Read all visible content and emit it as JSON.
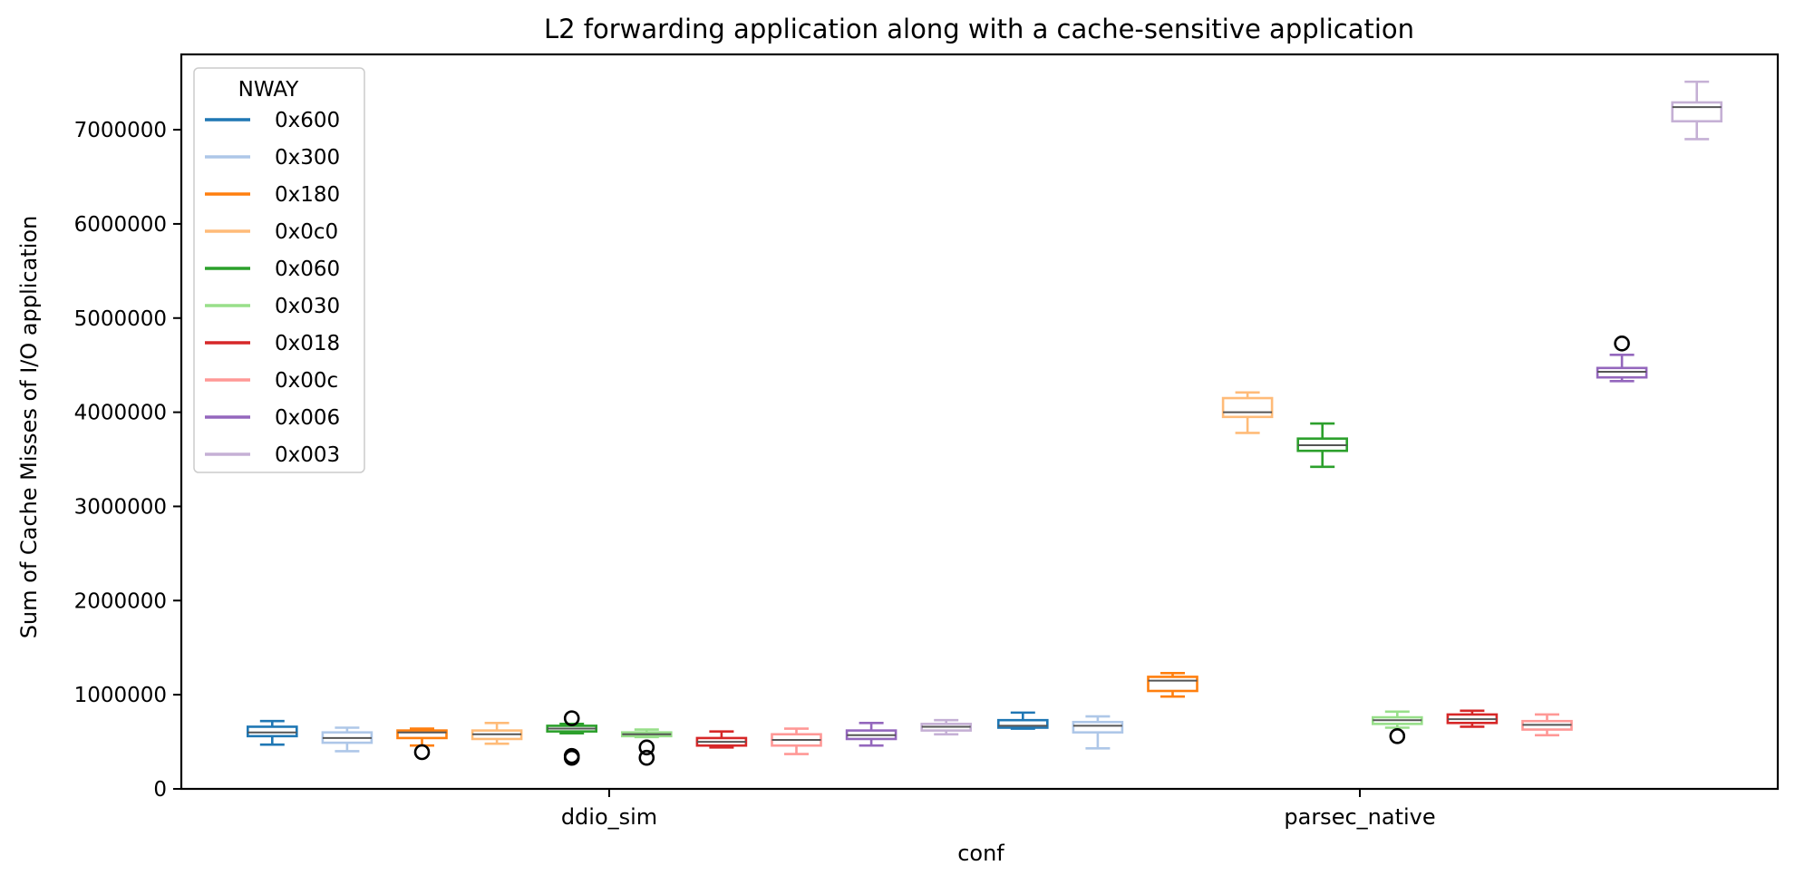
{
  "chart_data": {
    "type": "box",
    "title": "L2 forwarding application along with a cache-sensitive application",
    "xlabel": "conf",
    "ylabel": "Sum of Cache Misses of I/O application",
    "categories": [
      "ddio_sim",
      "parsec_native"
    ],
    "ylim": [
      0,
      7800000
    ],
    "yticks": [
      0,
      1000000,
      2000000,
      3000000,
      4000000,
      5000000,
      6000000,
      7000000
    ],
    "ytick_labels": [
      "0",
      "1000000",
      "2000000",
      "3000000",
      "4000000",
      "5000000",
      "6000000",
      "7000000"
    ],
    "grid": false,
    "legend": {
      "title": "NWAY",
      "position": "top-left"
    },
    "series": [
      {
        "name": "0x600",
        "color": "#1f77b4",
        "boxes": [
          {
            "category": "ddio_sim",
            "whislo": 470000,
            "q1": 560000,
            "med": 600000,
            "q3": 660000,
            "whishi": 720000,
            "fliers": []
          },
          {
            "category": "parsec_native",
            "whislo": 640000,
            "q1": 650000,
            "med": 670000,
            "q3": 730000,
            "whishi": 810000,
            "fliers": []
          }
        ]
      },
      {
        "name": "0x300",
        "color": "#aec7e8",
        "boxes": [
          {
            "category": "ddio_sim",
            "whislo": 400000,
            "q1": 490000,
            "med": 540000,
            "q3": 600000,
            "whishi": 650000,
            "fliers": []
          },
          {
            "category": "parsec_native",
            "whislo": 430000,
            "q1": 600000,
            "med": 670000,
            "q3": 710000,
            "whishi": 770000,
            "fliers": []
          }
        ]
      },
      {
        "name": "0x180",
        "color": "#ff7f0e",
        "boxes": [
          {
            "category": "ddio_sim",
            "whislo": 460000,
            "q1": 540000,
            "med": 600000,
            "q3": 620000,
            "whishi": 640000,
            "fliers": [
              390000
            ]
          },
          {
            "category": "parsec_native",
            "whislo": 980000,
            "q1": 1040000,
            "med": 1150000,
            "q3": 1190000,
            "whishi": 1230000,
            "fliers": []
          }
        ]
      },
      {
        "name": "0x0c0",
        "color": "#ffbb78",
        "boxes": [
          {
            "category": "ddio_sim",
            "whislo": 480000,
            "q1": 530000,
            "med": 580000,
            "q3": 620000,
            "whishi": 700000,
            "fliers": []
          },
          {
            "category": "parsec_native",
            "whislo": 3780000,
            "q1": 3950000,
            "med": 4000000,
            "q3": 4150000,
            "whishi": 4210000,
            "fliers": []
          }
        ]
      },
      {
        "name": "0x060",
        "color": "#2ca02c",
        "boxes": [
          {
            "category": "ddio_sim",
            "whislo": 590000,
            "q1": 610000,
            "med": 640000,
            "q3": 670000,
            "whishi": 690000,
            "fliers": [
              750000,
              350000,
              330000
            ]
          },
          {
            "category": "parsec_native",
            "whislo": 3420000,
            "q1": 3590000,
            "med": 3650000,
            "q3": 3720000,
            "whishi": 3880000,
            "fliers": []
          }
        ]
      },
      {
        "name": "0x030",
        "color": "#98df8a",
        "boxes": [
          {
            "category": "ddio_sim",
            "whislo": 550000,
            "q1": 560000,
            "med": 580000,
            "q3": 600000,
            "whishi": 630000,
            "fliers": [
              440000,
              330000
            ]
          },
          {
            "category": "parsec_native",
            "whislo": 650000,
            "q1": 690000,
            "med": 730000,
            "q3": 760000,
            "whishi": 820000,
            "fliers": [
              560000
            ]
          }
        ]
      },
      {
        "name": "0x018",
        "color": "#d62728",
        "boxes": [
          {
            "category": "ddio_sim",
            "whislo": 440000,
            "q1": 460000,
            "med": 500000,
            "q3": 540000,
            "whishi": 610000,
            "fliers": []
          },
          {
            "category": "parsec_native",
            "whislo": 660000,
            "q1": 700000,
            "med": 740000,
            "q3": 790000,
            "whishi": 830000,
            "fliers": []
          }
        ]
      },
      {
        "name": "0x00c",
        "color": "#ff9896",
        "boxes": [
          {
            "category": "ddio_sim",
            "whislo": 370000,
            "q1": 460000,
            "med": 520000,
            "q3": 580000,
            "whishi": 640000,
            "fliers": []
          },
          {
            "category": "parsec_native",
            "whislo": 570000,
            "q1": 630000,
            "med": 680000,
            "q3": 720000,
            "whishi": 790000,
            "fliers": []
          }
        ]
      },
      {
        "name": "0x006",
        "color": "#9467bd",
        "boxes": [
          {
            "category": "ddio_sim",
            "whislo": 460000,
            "q1": 530000,
            "med": 570000,
            "q3": 620000,
            "whishi": 700000,
            "fliers": []
          },
          {
            "category": "parsec_native",
            "whislo": 4330000,
            "q1": 4370000,
            "med": 4430000,
            "q3": 4470000,
            "whishi": 4610000,
            "fliers": [
              4730000
            ]
          }
        ]
      },
      {
        "name": "0x003",
        "color": "#c5b0d5",
        "boxes": [
          {
            "category": "ddio_sim",
            "whislo": 580000,
            "q1": 620000,
            "med": 660000,
            "q3": 690000,
            "whishi": 730000,
            "fliers": []
          },
          {
            "category": "parsec_native",
            "whislo": 6900000,
            "q1": 7090000,
            "med": 7240000,
            "q3": 7290000,
            "whishi": 7510000,
            "fliers": []
          }
        ]
      }
    ]
  }
}
